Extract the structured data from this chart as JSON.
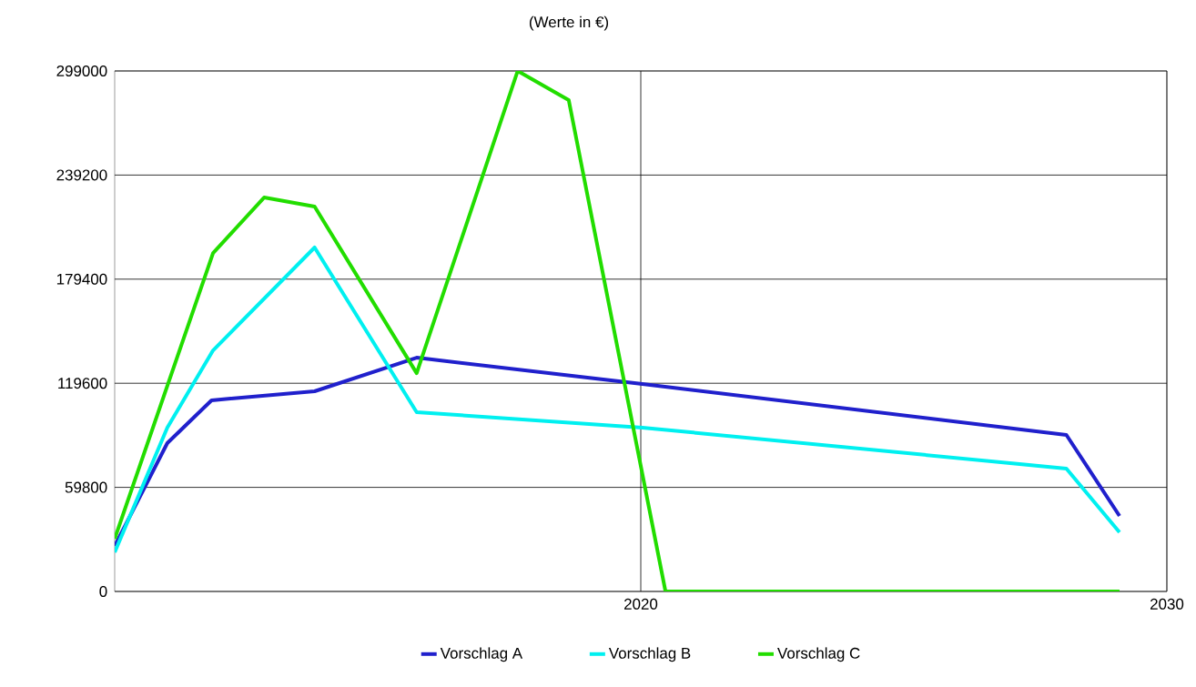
{
  "chart_data": {
    "type": "line",
    "title": "(Werte in €)",
    "xlim": [
      2010,
      2030
    ],
    "xticks": [
      2020,
      2030
    ],
    "ylim": [
      0,
      299000
    ],
    "yticks": [
      0,
      59800,
      119600,
      179400,
      239200,
      299000
    ],
    "grid": true,
    "legend": "bottom",
    "marker": "none",
    "line_style": "solid",
    "series": [
      {
        "name": "Vorschlag A",
        "color": "#2020cc",
        "x": [
          2010,
          2011.0,
          2011.84,
          2013.8,
          2015.74,
          2020.03,
          2028.09,
          2029.1
        ],
        "values": [
          26100,
          85200,
          109800,
          115000,
          134300,
          119200,
          89900,
          43400
        ]
      },
      {
        "name": "Vorschlag B",
        "color": "#00f0f0",
        "x": [
          2010,
          2011.0,
          2011.87,
          2013.8,
          2015.74,
          2020.03,
          2028.09,
          2029.1
        ],
        "values": [
          22500,
          94100,
          138500,
          197600,
          103000,
          94100,
          70600,
          34000
        ]
      },
      {
        "name": "Vorschlag C",
        "color": "#22dd00",
        "x": [
          2010,
          2011.87,
          2012.84,
          2013.8,
          2015.74,
          2017.66,
          2018.63,
          2020.47,
          2029.1
        ],
        "values": [
          30300,
          194400,
          226300,
          221100,
          125400,
          299000,
          282300,
          0,
          0
        ]
      }
    ]
  }
}
